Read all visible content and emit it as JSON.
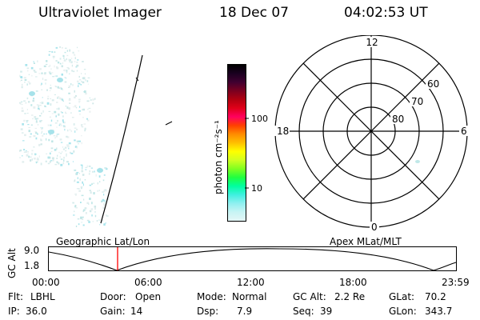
{
  "header": {
    "instrument": "Ultraviolet Imager",
    "date": "18 Dec 07",
    "time": "04:02:53 UT"
  },
  "colorbar": {
    "label": "photon cm⁻²s⁻¹",
    "ticks": [
      "100",
      "10"
    ],
    "colors": [
      "#000000",
      "#1a0020",
      "#400030",
      "#7a0020",
      "#b00010",
      "#e00018",
      "#ff0060",
      "#ff4000",
      "#ff8c00",
      "#ffbf00",
      "#ffff00",
      "#d0ff20",
      "#80ff20",
      "#20ff40",
      "#00ffa0",
      "#40f0e0",
      "#90f0f0",
      "#c8f4f4",
      "#e4f6f6"
    ]
  },
  "polar": {
    "mlt_labels": {
      "top": "12",
      "left": "18",
      "right": "6",
      "bottom": "0"
    },
    "lat_labels": [
      "60",
      "70",
      "80"
    ]
  },
  "timeline": {
    "left_label": "Geographic Lat/Lon",
    "right_label": "Apex MLat/MLT",
    "axis_label": "GC Alt",
    "y_ticks": [
      "9.0",
      "1.8"
    ],
    "x_ticks": [
      "00:00",
      "06:00",
      "12:00",
      "18:00",
      "23:59"
    ],
    "marker_time": "04:02:53",
    "marker_color": "#ff0000"
  },
  "status": {
    "row1": {
      "flt_label": "Flt:",
      "flt": "LBHL",
      "door_label": "Door:",
      "door": "Open",
      "mode_label": "Mode:",
      "mode": "Normal",
      "gcalt_label": "GC Alt:",
      "gcalt": "2.2 Re",
      "glat_label": "GLat:",
      "glat": "70.2"
    },
    "row2": {
      "ip_label": "IP:",
      "ip": "36.0",
      "gain_label": "Gain:",
      "gain": "14",
      "dsp_label": "Dsp:",
      "dsp": "7.9",
      "seq_label": "Seq:",
      "seq": "39",
      "glon_label": "GLon:",
      "glon": "343.7"
    }
  }
}
